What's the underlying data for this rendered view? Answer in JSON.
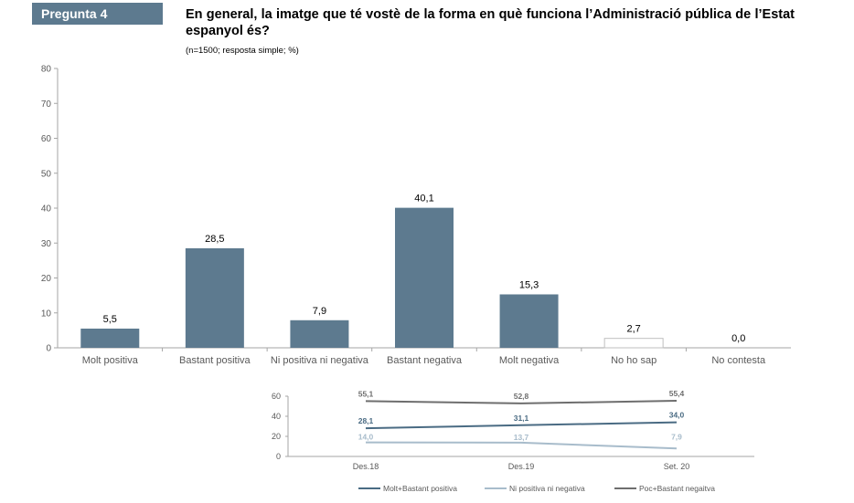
{
  "header": {
    "badge": "Pregunta 4",
    "question": "En general, la imatge que té vostè de la forma en què funciona l’Administració pública de l’Estat espanyol és?",
    "subtitle": "(n=1500; resposta simple; %)"
  },
  "colors": {
    "bar": "#5d7a8f",
    "axis": "#a6a6a6",
    "series_positive": "#4a6b83",
    "series_neutral": "#a8bccb",
    "series_negative": "#6e6e6e"
  },
  "chart_data": [
    {
      "type": "bar",
      "categories": [
        "Molt positiva",
        "Bastant positiva",
        "Ni positiva ni negativa",
        "Bastant negativa",
        "Molt negativa",
        "No ho sap",
        "No contesta"
      ],
      "values": [
        5.5,
        28.5,
        7.9,
        40.1,
        15.3,
        2.7,
        0.0
      ],
      "value_labels": [
        "5,5",
        "28,5",
        "7,9",
        "40,1",
        "15,3",
        "2,7",
        "0,0"
      ],
      "ylim": [
        0,
        80
      ],
      "yticks": [
        0,
        10,
        20,
        30,
        40,
        50,
        60,
        70,
        80
      ],
      "grid": false
    },
    {
      "type": "line",
      "categories": [
        "Des.18",
        "Des.19",
        "Set. 20"
      ],
      "ylim": [
        0,
        60
      ],
      "yticks": [
        0,
        20,
        40,
        60
      ],
      "legend_position": "bottom",
      "series": [
        {
          "name": "Molt+Bastant positiva",
          "values": [
            28.1,
            31.1,
            34.0
          ],
          "labels": [
            "28,1",
            "31,1",
            "34,0"
          ],
          "color": "#4a6b83"
        },
        {
          "name": "Ni positiva ni negativa",
          "values": [
            14.0,
            13.7,
            7.9
          ],
          "labels": [
            "14,0",
            "13,7",
            "7,9"
          ],
          "color": "#a8bccb"
        },
        {
          "name": "Poc+Bastant negaitva",
          "values": [
            55.1,
            52.8,
            55.4
          ],
          "labels": [
            "55,1",
            "52,8",
            "55,4"
          ],
          "color": "#6e6e6e"
        }
      ]
    }
  ]
}
